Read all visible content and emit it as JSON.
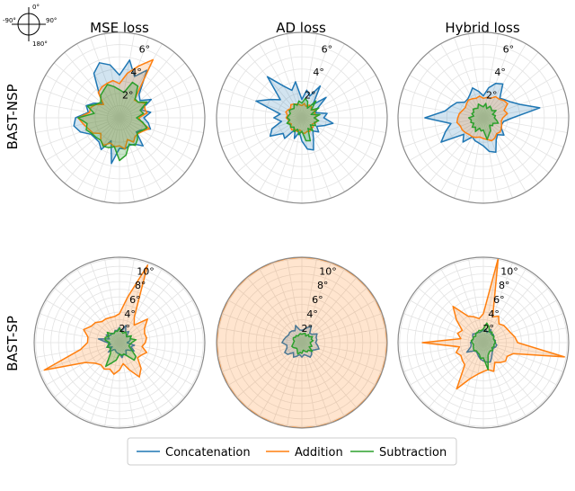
{
  "compass": {
    "labels": [
      "0°",
      "90°",
      "180°",
      "-90°"
    ]
  },
  "columns": [
    "MSE loss",
    "AD loss",
    "Hybrid loss"
  ],
  "rows": [
    "BAST-NSP",
    "BAST-SP"
  ],
  "legend": [
    "Concatenation",
    "Addition",
    "Subtraction"
  ],
  "colors": {
    "Concatenation": "#1f77b4",
    "Addition": "#ff7f0e",
    "Subtraction": "#2ca02c",
    "grid": "#e3e3e3",
    "spine": "#8c8c8c"
  },
  "chart_data": [
    {
      "type": "radar",
      "row": "BAST-NSP",
      "column": "MSE loss",
      "rlim": [
        0,
        7
      ],
      "rticks": [
        "2°",
        "4°",
        "6°"
      ],
      "series": [
        {
          "name": "Concatenation",
          "values": [
            3.5,
            4.8,
            3.6,
            4.5,
            2.5,
            2.2,
            3.0,
            1.9,
            2.6,
            2.0,
            2.4,
            2.7,
            2.0,
            1.8,
            3.0,
            2.5,
            2.4,
            2.6,
            2.5,
            3.8,
            2.0,
            3.0,
            2.6,
            2.6,
            2.7,
            3.4,
            3.8,
            3.6,
            2.6,
            2.9,
            2.4,
            1.8,
            2.6,
            4.2,
            4.8,
            4.4
          ]
        },
        {
          "name": "Addition",
          "values": [
            2.8,
            3.7,
            4.5,
            5.5,
            1.9,
            2.0,
            2.4,
            2.2,
            2.3,
            1.6,
            1.8,
            2.6,
            2.2,
            2.0,
            2.0,
            2.3,
            1.9,
            2.6,
            2.3,
            2.4,
            2.2,
            2.6,
            2.4,
            2.0,
            2.5,
            2.7,
            3.0,
            3.4,
            2.5,
            2.5,
            2.2,
            1.7,
            2.7,
            2.9,
            3.0,
            3.1
          ]
        },
        {
          "name": "Subtraction",
          "values": [
            2.3,
            2.1,
            3.1,
            3.0,
            2.0,
            2.0,
            2.6,
            1.8,
            2.0,
            1.4,
            1.9,
            2.4,
            2.1,
            1.9,
            2.3,
            2.6,
            2.3,
            3.1,
            3.5,
            2.4,
            2.6,
            2.7,
            2.4,
            2.5,
            2.6,
            2.9,
            2.7,
            3.4,
            2.1,
            2.8,
            2.2,
            2.0,
            2.4,
            2.6,
            2.9,
            2.6
          ]
        }
      ]
    },
    {
      "type": "radar",
      "row": "BAST-NSP",
      "column": "AD loss",
      "rlim": [
        0,
        7
      ],
      "rticks": [
        "2°",
        "4°",
        "6°"
      ],
      "series": [
        {
          "name": "Concatenation",
          "values": [
            1.5,
            2.3,
            1.9,
            3.0,
            1.4,
            2.6,
            1.4,
            1.2,
            2.1,
            1.8,
            2.6,
            1.9,
            1.4,
            1.8,
            1.4,
            1.9,
            2.8,
            2.6,
            1.9,
            1.2,
            1.8,
            1.1,
            2.2,
            2.0,
            3.0,
            2.6,
            1.7,
            2.3,
            1.8,
            4.0,
            3.0,
            2.3,
            4.4,
            3.0,
            2.4,
            3.0
          ]
        },
        {
          "name": "Addition",
          "values": [
            1.0,
            1.2,
            1.0,
            1.2,
            1.2,
            1.0,
            1.3,
            1.1,
            1.2,
            1.1,
            1.3,
            1.2,
            1.0,
            1.2,
            1.1,
            1.3,
            1.2,
            1.3,
            1.2,
            1.0,
            1.2,
            1.1,
            1.3,
            1.2,
            1.0,
            1.2,
            1.1,
            1.3,
            1.2,
            1.4,
            1.3,
            1.2,
            1.4,
            1.3,
            1.2,
            1.1
          ]
        },
        {
          "name": "Subtraction",
          "values": [
            1.2,
            1.6,
            1.4,
            0.9,
            1.8,
            1.0,
            1.6,
            0.8,
            1.5,
            1.0,
            1.4,
            1.1,
            1.3,
            0.9,
            1.4,
            1.0,
            2.0,
            1.9,
            1.1,
            1.4,
            1.0,
            1.3,
            1.0,
            1.2,
            1.1,
            1.3,
            1.0,
            1.2,
            1.1,
            1.0,
            1.2,
            1.1,
            1.0,
            1.3,
            1.1,
            1.4
          ]
        }
      ]
    },
    {
      "type": "radar",
      "row": "BAST-NSP",
      "column": "Hybrid loss",
      "rlim": [
        0,
        7
      ],
      "rticks": [
        "2°",
        "4°",
        "6°"
      ],
      "series": [
        {
          "name": "Concatenation",
          "values": [
            1.8,
            2.5,
            3.0,
            3.2,
            2.1,
            2.3,
            2.6,
            3.2,
            4.7,
            2.4,
            1.7,
            1.6,
            1.7,
            2.2,
            1.8,
            2.1,
            3.0,
            2.8,
            2.3,
            2.1,
            2.0,
            1.8,
            2.6,
            2.1,
            4.0,
            3.3,
            2.7,
            4.8,
            3.2,
            2.8,
            2.5,
            2.0,
            2.0,
            2.2,
            2.6,
            2.2
          ]
        },
        {
          "name": "Addition",
          "values": [
            1.6,
            1.7,
            1.7,
            2.0,
            2.0,
            2.2,
            2.3,
            1.8,
            2.0,
            1.6,
            1.5,
            1.6,
            1.7,
            1.8,
            1.7,
            1.9,
            2.0,
            1.8,
            1.7,
            1.6,
            1.7,
            1.8,
            1.8,
            1.9,
            2.0,
            2.0,
            2.2,
            2.1,
            2.0,
            1.8,
            1.7,
            1.8,
            1.9,
            1.8,
            1.7,
            1.8
          ]
        },
        {
          "name": "Subtraction",
          "values": [
            0.9,
            1.2,
            0.8,
            1.1,
            1.0,
            0.9,
            1.2,
            0.8,
            1.0,
            0.9,
            1.1,
            1.3,
            0.9,
            1.0,
            0.8,
            1.2,
            1.4,
            1.8,
            1.0,
            1.1,
            0.9,
            1.3,
            1.0,
            1.2,
            0.9,
            1.1,
            1.0,
            1.2,
            0.8,
            1.0,
            0.9,
            1.1,
            1.0,
            0.9,
            1.2,
            1.0
          ]
        }
      ]
    },
    {
      "type": "radar",
      "row": "BAST-SP",
      "column": "MSE loss",
      "rlim": [
        0,
        11.2
      ],
      "rticks": [
        "2°",
        "4°",
        "6°",
        "8°",
        "10°"
      ],
      "series": [
        {
          "name": "Concatenation",
          "values": [
            2.0,
            1.5,
            2.4,
            1.6,
            1.9,
            1.2,
            1.7,
            1.5,
            1.4,
            1.0,
            2.0,
            1.6,
            2.2,
            1.5,
            1.3,
            1.8,
            1.6,
            2.0,
            1.5,
            1.4,
            1.3,
            1.1,
            1.2,
            1.9,
            1.1,
            1.8,
            1.2,
            1.6,
            2.8,
            1.4,
            2.0,
            1.5,
            1.6,
            1.4,
            1.7,
            1.6
          ]
        },
        {
          "name": "Addition",
          "values": [
            3.8,
            6.0,
            10.8,
            3.9,
            3.0,
            4.8,
            3.8,
            3.5,
            3.6,
            3.4,
            3.0,
            3.8,
            3.3,
            3.1,
            4.4,
            5.2,
            3.8,
            2.8,
            3.6,
            4.2,
            3.7,
            4.0,
            3.8,
            4.2,
            5.2,
            10.5,
            5.2,
            4.2,
            4.2,
            5.0,
            4.3,
            4.1,
            3.6,
            3.6,
            3.5,
            3.5
          ]
        },
        {
          "name": "Subtraction",
          "values": [
            1.9,
            1.5,
            1.3,
            1.6,
            1.4,
            1.2,
            1.8,
            1.5,
            2.2,
            1.6,
            1.4,
            1.3,
            1.8,
            2.8,
            3.0,
            2.0,
            1.6,
            1.7,
            1.5,
            2.3,
            2.8,
            3.6,
            1.8,
            1.6,
            1.4,
            1.7,
            1.5,
            1.3,
            1.9,
            2.0,
            1.6,
            2.1,
            1.5,
            1.4,
            1.6,
            1.5
          ]
        }
      ]
    },
    {
      "type": "radar",
      "row": "BAST-SP",
      "column": "AD loss",
      "rlim": [
        0,
        11.2
      ],
      "rticks": [
        "2°",
        "4°",
        "6°",
        "8°",
        "10°"
      ],
      "series": [
        {
          "name": "Concatenation",
          "values": [
            1.6,
            1.8,
            2.1,
            2.5,
            1.6,
            1.7,
            2.3,
            2.0,
            2.0,
            1.8,
            2.1,
            2.4,
            1.9,
            1.6,
            2.0,
            2.2,
            1.8,
            1.6,
            1.9,
            1.6,
            1.9,
            2.2,
            1.7,
            2.4,
            2.6,
            2.1,
            2.0,
            2.6,
            2.4,
            2.2,
            2.0,
            2.1,
            2.0,
            1.8,
            2.4,
            1.7
          ]
        },
        {
          "name": "Addition",
          "values": [
            11.2,
            11.2,
            11.2,
            11.2,
            11.2,
            11.2,
            11.2,
            11.2,
            11.2,
            11.2,
            11.2,
            11.2,
            11.2,
            11.2,
            11.2,
            11.2,
            11.2,
            11.2,
            11.2,
            11.2,
            11.2,
            11.2,
            11.2,
            11.2,
            11.2,
            11.2,
            11.2,
            11.2,
            11.2,
            11.2,
            11.2,
            11.2,
            11.2,
            11.2,
            11.2,
            11.2
          ]
        },
        {
          "name": "Subtraction",
          "values": [
            1.1,
            1.2,
            1.3,
            1.0,
            1.4,
            1.2,
            1.6,
            1.3,
            1.5,
            1.1,
            1.2,
            1.4,
            1.1,
            1.8,
            1.3,
            1.4,
            1.2,
            1.0,
            1.4,
            1.3,
            1.6,
            1.2,
            1.0,
            1.1,
            1.3,
            1.4,
            1.2,
            1.1,
            1.0,
            1.2,
            1.3,
            1.1,
            1.2,
            1.0,
            1.1,
            1.2
          ]
        }
      ]
    },
    {
      "type": "radar",
      "row": "BAST-SP",
      "column": "Hybrid loss",
      "rlim": [
        0,
        11.2
      ],
      "rticks": [
        "2°",
        "4°",
        "6°",
        "8°",
        "10°"
      ],
      "series": [
        {
          "name": "Concatenation",
          "values": [
            1.6,
            1.8,
            1.4,
            2.0,
            1.5,
            1.7,
            1.6,
            1.4,
            1.6,
            1.5,
            1.8,
            1.7,
            1.5,
            1.6,
            1.8,
            2.2,
            2.7,
            2.6,
            2.4,
            2.2,
            1.9,
            1.6,
            1.5,
            1.7,
            2.5,
            1.8,
            1.6,
            1.7,
            1.5,
            1.4,
            1.6,
            1.8,
            1.5,
            1.6,
            1.4,
            1.5
          ]
        },
        {
          "name": "Addition",
          "values": [
            3.8,
            11.2,
            3.6,
            4.0,
            3.2,
            3.5,
            3.6,
            3.8,
            4.2,
            4.5,
            10.8,
            4.2,
            3.6,
            3.8,
            3.4,
            3.0,
            4.0,
            3.6,
            3.8,
            4.2,
            5.0,
            7.0,
            3.8,
            3.6,
            3.4,
            3.8,
            3.2,
            8.0,
            3.0,
            3.6,
            3.2,
            4.6,
            6.2,
            4.0,
            3.6,
            3.2
          ]
        },
        {
          "name": "Subtraction",
          "values": [
            1.8,
            2.6,
            2.2,
            1.6,
            1.8,
            1.5,
            1.6,
            1.4,
            1.5,
            1.6,
            1.4,
            1.5,
            1.3,
            1.6,
            1.4,
            1.5,
            1.8,
            3.6,
            2.0,
            2.1,
            1.6,
            1.5,
            1.4,
            1.6,
            1.5,
            1.4,
            1.3,
            1.5,
            1.6,
            1.4,
            1.5,
            1.3,
            1.6,
            1.5,
            1.7,
            1.6
          ]
        }
      ]
    }
  ]
}
